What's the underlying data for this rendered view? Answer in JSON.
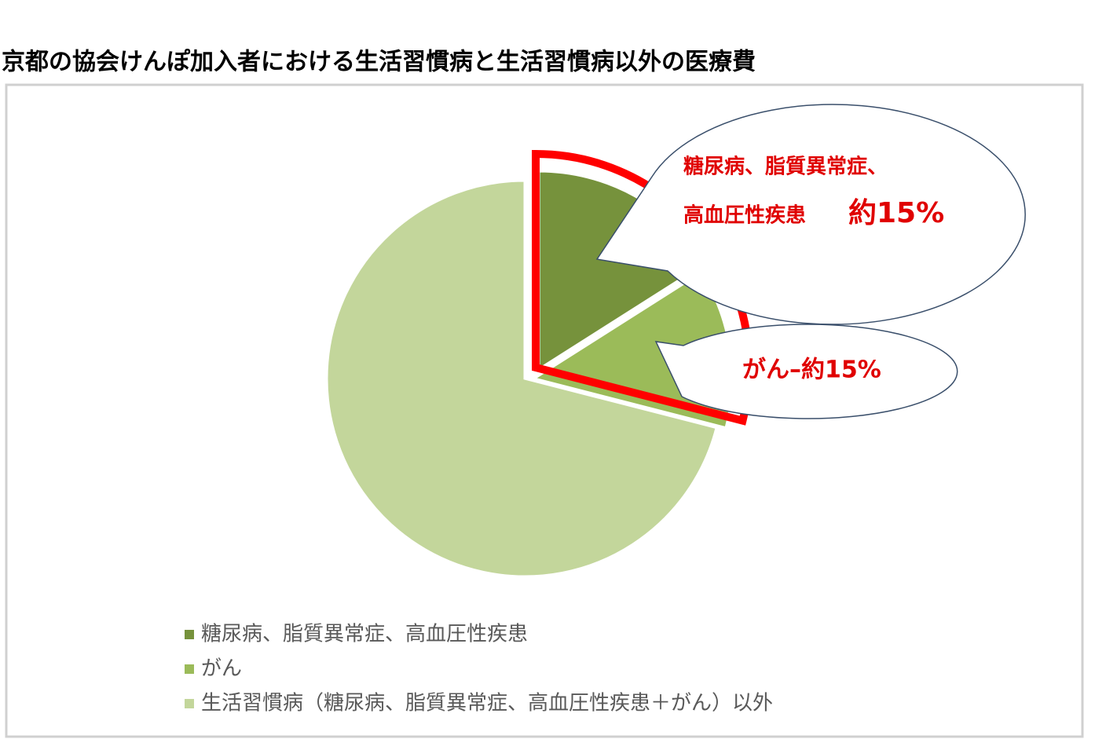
{
  "chart_data": {
    "type": "pie",
    "title": "京都の協会けんぽ加入者における生活習慣病と生活習慣病以外の医療費",
    "series": [
      {
        "name": "糖尿病、脂質異常症、高血圧性疾患",
        "color": "#76923c",
        "values": [
          16
        ]
      },
      {
        "name": "がん",
        "color": "#9bbb59",
        "values": [
          13
        ]
      },
      {
        "name": "生活習慣病（糖尿病、脂質異常症、高血圧性疾患＋がん）以外",
        "color": "#c3d69b",
        "values": [
          71
        ]
      }
    ],
    "annotations": [
      {
        "lines": [
          "糖尿病、脂質異常症、",
          "高血圧性疾患",
          "約15%"
        ]
      },
      {
        "lines": [
          "がん–約15%"
        ]
      }
    ]
  }
}
